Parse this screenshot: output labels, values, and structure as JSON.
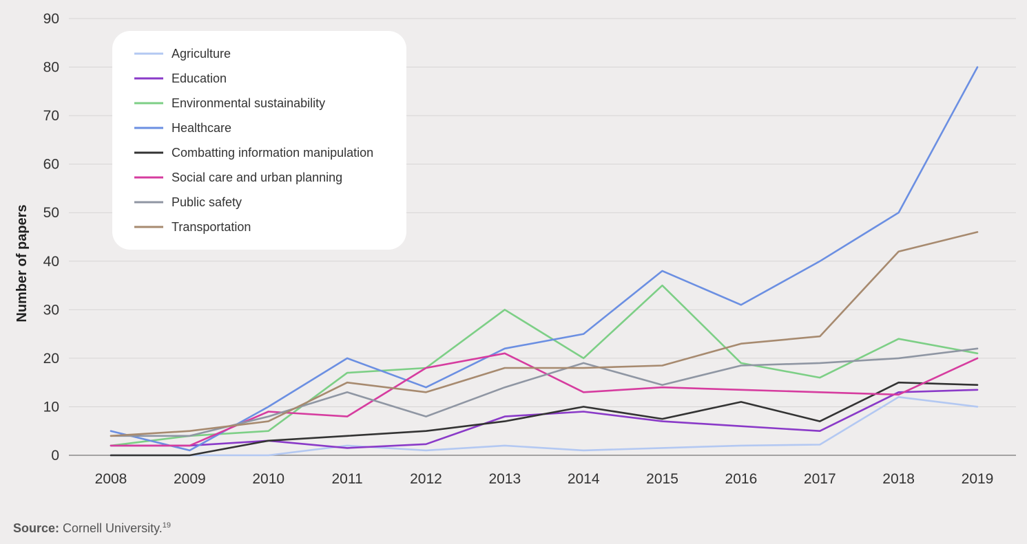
{
  "chart_data": {
    "type": "line",
    "title": "",
    "xlabel": "",
    "ylabel": "Number of papers",
    "ylim": [
      0,
      90
    ],
    "yticks": [
      "0",
      "10",
      "20",
      "30",
      "40",
      "50",
      "60",
      "70",
      "80",
      "90"
    ],
    "grid": true,
    "legend_position": "top-left",
    "x": [
      "2008",
      "2009",
      "2010",
      "2011",
      "2012",
      "2013",
      "2014",
      "2015",
      "2016",
      "2017",
      "2018",
      "2019"
    ],
    "series": [
      {
        "name": "Agriculture",
        "color": "#b3c8f2",
        "values": [
          0,
          0,
          0,
          2,
          1,
          2,
          1,
          1.5,
          2,
          2.2,
          12,
          10
        ]
      },
      {
        "name": "Education",
        "color": "#8a3ac8",
        "values": [
          2,
          2,
          3,
          1.5,
          2.3,
          8,
          9,
          7,
          6,
          5,
          13,
          13.5
        ]
      },
      {
        "name": "Environmental sustainability",
        "color": "#7dcf86",
        "values": [
          2,
          4,
          5,
          17,
          18,
          30,
          20,
          35,
          19,
          16,
          24,
          21
        ]
      },
      {
        "name": "Healthcare",
        "color": "#6b8fe2",
        "values": [
          5,
          1,
          10,
          20,
          14,
          22,
          25,
          38,
          31,
          40,
          50,
          80
        ]
      },
      {
        "name": "Combatting information manipulation",
        "color": "#333333",
        "values": [
          0,
          0,
          3,
          4,
          5,
          7,
          10,
          7.5,
          11,
          7,
          15,
          14.5
        ]
      },
      {
        "name": "Social care and urban planning",
        "color": "#d63c9f",
        "values": [
          2,
          2,
          9,
          8,
          18,
          21,
          13,
          14,
          13.5,
          13,
          12.5,
          20
        ]
      },
      {
        "name": "Public safety",
        "color": "#8f96a3",
        "values": [
          4,
          4,
          8,
          13,
          8,
          14,
          19,
          14.5,
          18.5,
          19,
          20,
          22
        ]
      },
      {
        "name": "Transportation",
        "color": "#a78a6f",
        "values": [
          4,
          5,
          7,
          15,
          13,
          18,
          18,
          18.5,
          23,
          24.5,
          42,
          46
        ]
      }
    ]
  },
  "source": {
    "label": "Source:",
    "text": " Cornell University.",
    "note": "19"
  }
}
